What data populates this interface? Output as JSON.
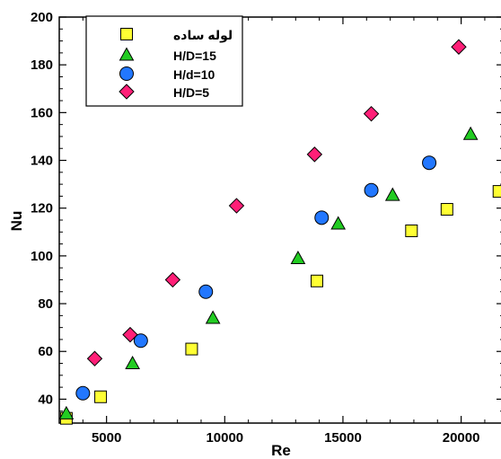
{
  "chart_data": {
    "type": "scatter",
    "xlabel": "Re",
    "ylabel": "Nu",
    "xlim": [
      3000,
      21800
    ],
    "ylim": [
      30,
      200
    ],
    "x_ticks": [
      5000,
      10000,
      15000,
      20000
    ],
    "y_ticks": [
      40,
      60,
      80,
      100,
      120,
      140,
      160,
      180,
      200
    ],
    "grid": false,
    "legend_position": "top-left",
    "series": [
      {
        "name": "لوله ساده",
        "marker": "square",
        "color": "#ffff33",
        "points": [
          [
            3300,
            32
          ],
          [
            4750,
            41
          ],
          [
            8600,
            61
          ],
          [
            13900,
            89.5
          ],
          [
            17900,
            110.5
          ],
          [
            19400,
            119.5
          ],
          [
            21600,
            127
          ]
        ]
      },
      {
        "name": "H/D=15",
        "marker": "triangle",
        "color": "#22cc22",
        "points": [
          [
            3300,
            34
          ],
          [
            6100,
            55
          ],
          [
            9500,
            74
          ],
          [
            13100,
            99
          ],
          [
            14800,
            113.5
          ],
          [
            17100,
            125.5
          ],
          [
            20400,
            151
          ]
        ]
      },
      {
        "name": "H/d=10",
        "marker": "circle",
        "color": "#2277ff",
        "points": [
          [
            4000,
            42.5
          ],
          [
            6450,
            64.5
          ],
          [
            9200,
            85
          ],
          [
            14100,
            116
          ],
          [
            16200,
            127.5
          ],
          [
            18650,
            139
          ]
        ]
      },
      {
        "name": "H/D=5",
        "marker": "diamond",
        "color": "#ff1f77",
        "points": [
          [
            4500,
            57
          ],
          [
            6000,
            67
          ],
          [
            7800,
            90
          ],
          [
            10500,
            121
          ],
          [
            13800,
            142.5
          ],
          [
            16200,
            159.5
          ],
          [
            19900,
            187.5
          ]
        ]
      }
    ]
  }
}
